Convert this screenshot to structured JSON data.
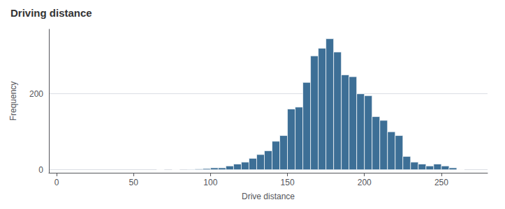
{
  "chart_data": {
    "type": "histogram",
    "title": "Driving distance",
    "xlabel": "Drive distance",
    "ylabel": "Frequency",
    "x": [
      65,
      75,
      85,
      90,
      95,
      100,
      105,
      110,
      115,
      120,
      125,
      130,
      135,
      140,
      145,
      150,
      155,
      160,
      165,
      170,
      175,
      180,
      185,
      190,
      195,
      200,
      205,
      210,
      215,
      220,
      225,
      230,
      235,
      240,
      245,
      250,
      255,
      260
    ],
    "values": [
      0,
      0,
      1,
      2,
      3,
      5,
      5,
      10,
      15,
      20,
      30,
      40,
      50,
      75,
      90,
      160,
      165,
      230,
      300,
      320,
      345,
      310,
      250,
      245,
      200,
      195,
      140,
      130,
      100,
      90,
      35,
      20,
      15,
      10,
      15,
      10,
      5,
      0
    ],
    "bin_width": 5,
    "color": "#3d6f96",
    "xlim": [
      -5,
      280
    ],
    "xticks": [
      0,
      50,
      100,
      150,
      200,
      250
    ],
    "ylim": [
      -8,
      370
    ],
    "yticks": [
      0,
      200
    ],
    "grid": true
  }
}
